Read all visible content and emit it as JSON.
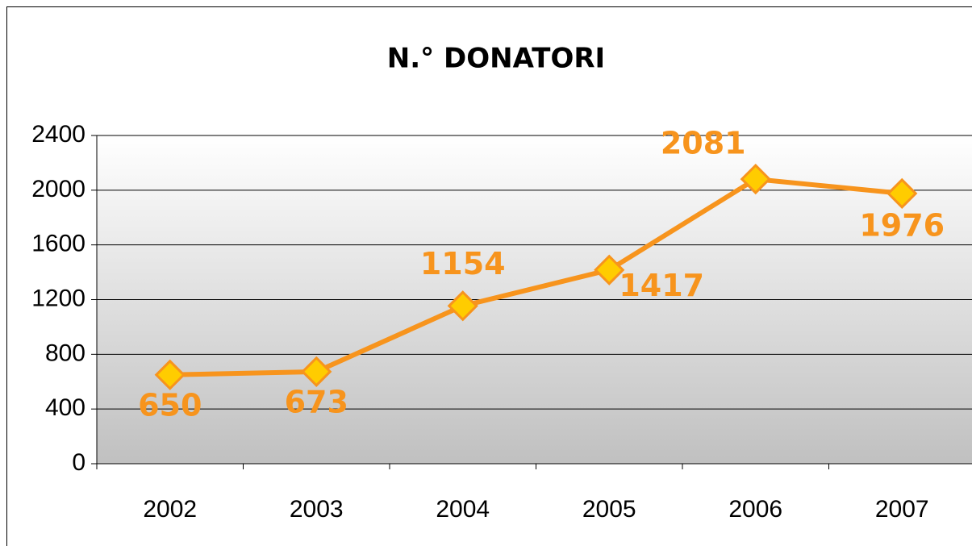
{
  "chart_data": {
    "type": "line",
    "title": "N.° DONATORI",
    "categories": [
      "2002",
      "2003",
      "2004",
      "2005",
      "2006",
      "2007"
    ],
    "values": [
      650,
      673,
      1154,
      1417,
      2081,
      1976
    ],
    "color": "#f7941d",
    "marker_color": "#ffcc00",
    "ylim": [
      0,
      2400
    ],
    "yticks": [
      0,
      400,
      800,
      1200,
      1600,
      2000,
      2400
    ],
    "grid": true
  }
}
